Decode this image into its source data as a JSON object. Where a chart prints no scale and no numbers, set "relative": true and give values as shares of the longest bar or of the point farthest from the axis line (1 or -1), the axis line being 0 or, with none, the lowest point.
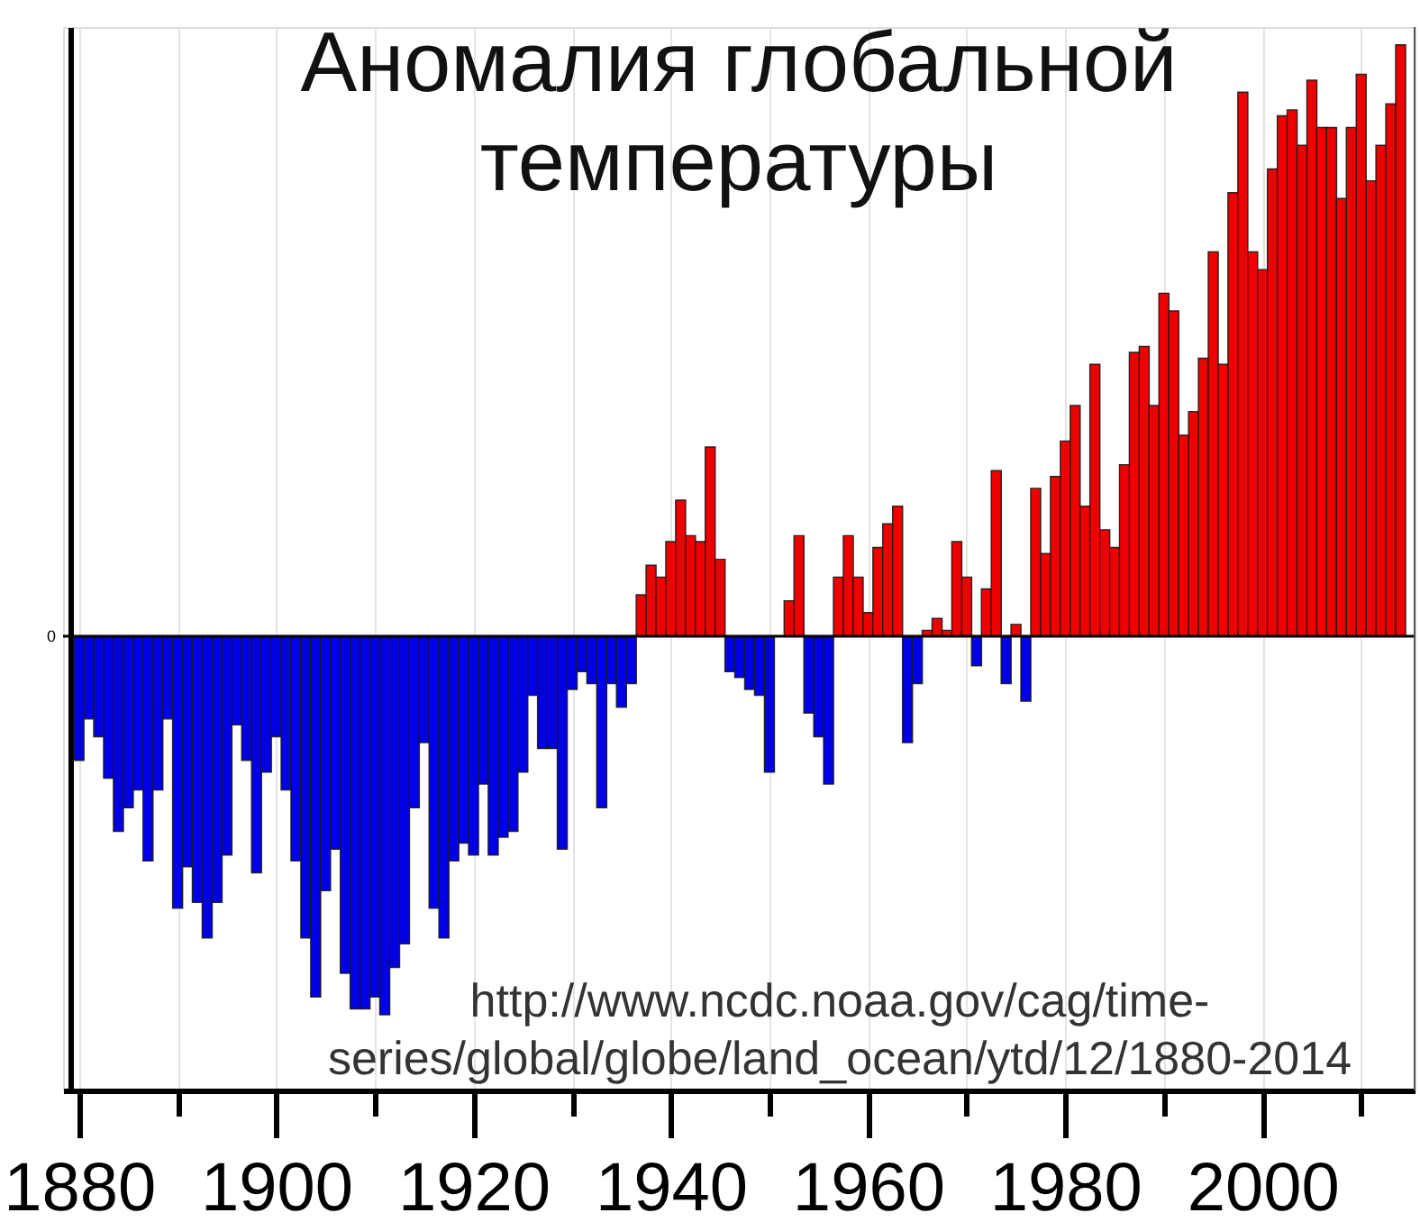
{
  "chart_data": {
    "type": "bar",
    "title": "Аномалия глобальной\nтемпературы",
    "annotations": [
      "http://www.ncdc.noaa.gov/cag/time-\nseries/global/globe/land_ocean/ytd/12/1880-2014"
    ],
    "relative": true,
    "x": [
      1880,
      1881,
      1882,
      1883,
      1884,
      1885,
      1886,
      1887,
      1888,
      1889,
      1890,
      1891,
      1892,
      1893,
      1894,
      1895,
      1896,
      1897,
      1898,
      1899,
      1900,
      1901,
      1902,
      1903,
      1904,
      1905,
      1906,
      1907,
      1908,
      1909,
      1910,
      1911,
      1912,
      1913,
      1914,
      1915,
      1916,
      1917,
      1918,
      1919,
      1920,
      1921,
      1922,
      1923,
      1924,
      1925,
      1926,
      1927,
      1928,
      1929,
      1930,
      1931,
      1932,
      1933,
      1934,
      1935,
      1936,
      1937,
      1938,
      1939,
      1940,
      1941,
      1942,
      1943,
      1944,
      1945,
      1946,
      1947,
      1948,
      1949,
      1950,
      1951,
      1952,
      1953,
      1954,
      1955,
      1956,
      1957,
      1958,
      1959,
      1960,
      1961,
      1962,
      1963,
      1964,
      1965,
      1966,
      1967,
      1968,
      1969,
      1970,
      1971,
      1972,
      1973,
      1974,
      1975,
      1976,
      1977,
      1978,
      1979,
      1980,
      1981,
      1982,
      1983,
      1984,
      1985,
      1986,
      1987,
      1988,
      1989,
      1990,
      1991,
      1992,
      1993,
      1994,
      1995,
      1996,
      1997,
      1998,
      1999,
      2000,
      2001,
      2002,
      2003,
      2004,
      2005,
      2006,
      2007,
      2008,
      2009,
      2010,
      2011,
      2012,
      2013,
      2014
    ],
    "values": [
      -0.21,
      -0.14,
      -0.17,
      -0.24,
      -0.33,
      -0.29,
      -0.26,
      -0.38,
      -0.26,
      -0.14,
      -0.46,
      -0.39,
      -0.45,
      -0.51,
      -0.45,
      -0.37,
      -0.15,
      -0.21,
      -0.4,
      -0.23,
      -0.17,
      -0.26,
      -0.38,
      -0.51,
      -0.61,
      -0.43,
      -0.36,
      -0.57,
      -0.63,
      -0.63,
      -0.61,
      -0.64,
      -0.56,
      -0.52,
      -0.29,
      -0.18,
      -0.46,
      -0.51,
      -0.38,
      -0.35,
      -0.37,
      -0.25,
      -0.37,
      -0.34,
      -0.33,
      -0.23,
      -0.1,
      -0.19,
      -0.19,
      -0.36,
      -0.09,
      -0.06,
      -0.08,
      -0.29,
      -0.08,
      -0.12,
      -0.08,
      0.07,
      0.12,
      0.1,
      0.16,
      0.23,
      0.17,
      0.16,
      0.32,
      0.13,
      -0.06,
      -0.07,
      -0.09,
      -0.1,
      -0.23,
      null,
      0.06,
      0.17,
      -0.13,
      -0.17,
      -0.25,
      0.1,
      0.17,
      0.1,
      0.04,
      0.15,
      0.19,
      0.22,
      -0.18,
      -0.08,
      0.01,
      0.03,
      0.01,
      0.16,
      0.1,
      -0.05,
      0.08,
      0.28,
      -0.08,
      0.02,
      -0.11,
      0.25,
      0.14,
      0.27,
      0.33,
      0.39,
      0.22,
      0.46,
      0.18,
      0.15,
      0.29,
      0.48,
      0.49,
      0.39,
      0.58,
      0.55,
      0.34,
      0.38,
      0.47,
      0.65,
      0.46,
      0.75,
      0.92,
      0.65,
      0.62,
      0.79,
      0.88,
      0.89,
      0.83,
      0.94,
      0.86,
      0.86,
      0.74,
      0.86,
      0.95,
      0.77,
      0.83,
      0.9,
      1.0
    ],
    "colors": [
      "#0000e6",
      "#0000e6",
      "#0000e6",
      "#0000e6",
      "#0000e6",
      "#0000e6",
      "#0000e6",
      "#0000e6",
      "#0000e6",
      "#0000e6",
      "#0000e6",
      "#0000e6",
      "#0000e6",
      "#0000e6",
      "#0000e6",
      "#0000e6",
      "#0000e6",
      "#0000e6",
      "#0000e6",
      "#0000e6",
      "#0000e6",
      "#0000e6",
      "#0000e6",
      "#0000e6",
      "#0000e6",
      "#0000e6",
      "#0000e6",
      "#0000e6",
      "#0000e6",
      "#0000e6",
      "#0000e6",
      "#0000e6",
      "#0000e6",
      "#0000e6",
      "#0000e6",
      "#0000e6",
      "#0000e6",
      "#0000e6",
      "#0000e6",
      "#0000e6",
      "#0000e6",
      "#0000e6",
      "#0000e6",
      "#0000e6",
      "#0000e6",
      "#0000e6",
      "#0000e6",
      "#0000e6",
      "#0000e6",
      "#0000e6",
      "#0000e6",
      "#0000e6",
      "#0000e6",
      "#0000e6",
      "#0000e6",
      "#0000e6",
      "#0000e6",
      "#ee0000",
      "#ee0000",
      "#ee0000",
      "#ee0000",
      "#ee0000",
      "#ee0000",
      "#ee0000",
      "#ee0000",
      "#ee0000",
      "#0000e6",
      "#0000e6",
      "#0000e6",
      "#0000e6",
      "#0000e6",
      null,
      "#ee0000",
      "#ee0000",
      "#0000e6",
      "#0000e6",
      "#0000e6",
      "#ee0000",
      "#ee0000",
      "#ee0000",
      "#ee0000",
      "#ee0000",
      "#ee0000",
      "#ee0000",
      "#0000e6",
      "#0000e6",
      "#ee0000",
      "#ee0000",
      "#ee0000",
      "#ee0000",
      "#ee0000",
      "#0000e6",
      "#ee0000",
      "#ee0000",
      "#0000e6",
      "#ee0000",
      "#0000e6",
      "#ee0000",
      "#ee0000",
      "#ee0000",
      "#ee0000",
      "#ee0000",
      "#ee0000",
      "#ee0000",
      "#ee0000",
      "#ee0000",
      "#ee0000",
      "#ee0000",
      "#ee0000",
      "#ee0000",
      "#ee0000",
      "#ee0000",
      "#ee0000",
      "#ee0000",
      "#ee0000",
      "#ee0000",
      "#ee0000",
      "#ee0000",
      "#ee0000",
      "#ee0000",
      "#ee0000",
      "#ee0000",
      "#ee0000",
      "#ee0000",
      "#ee0000",
      "#ee0000",
      "#ee0000",
      "#ee0000",
      "#ee0000",
      "#ee0000",
      "#ee0000",
      "#ee0000",
      "#ee0000",
      "#ee0000",
      "#ee0000"
    ],
    "xlim": [
      1879.3,
      2014.5
    ],
    "xticks": [
      1880,
      {
        "value": 1890,
        "label": null
      },
      1900,
      {
        "value": 1910,
        "label": null
      },
      1920,
      {
        "value": 1930,
        "label": null
      },
      1940,
      {
        "value": 1950,
        "label": null
      },
      1960,
      {
        "value": 1970,
        "label": null
      },
      1980,
      {
        "value": 1990,
        "label": null
      },
      2000,
      {
        "value": 2010,
        "label": null
      }
    ],
    "ref_lines": [
      {
        "axis": "y",
        "value": 0,
        "label": "0",
        "color": "#000000"
      }
    ],
    "grid": "x"
  }
}
